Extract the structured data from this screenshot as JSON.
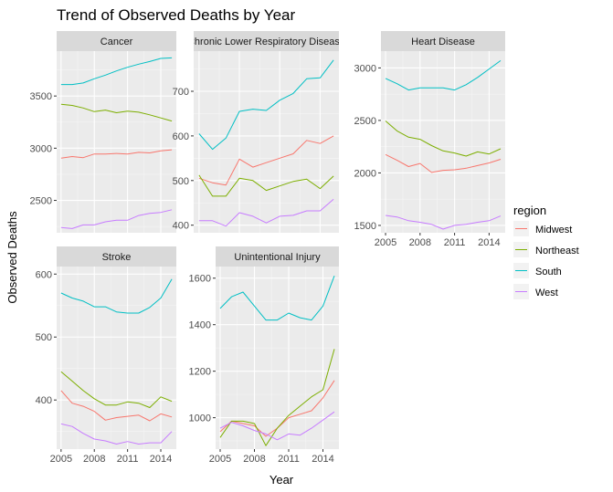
{
  "title": "Trend of Observed Deaths by Year",
  "xlabel": "Year",
  "ylabel": "Observed Deaths",
  "legend": {
    "title": "region",
    "placement": "right",
    "entries": [
      {
        "name": "Midwest",
        "color": "#F8766D"
      },
      {
        "name": "Northeast",
        "color": "#7CAE00"
      },
      {
        "name": "South",
        "color": "#00BFC4"
      },
      {
        "name": "West",
        "color": "#C77CFF"
      }
    ]
  },
  "chart_data": {
    "type": "line",
    "facet_layout": "3 columns, free y scales",
    "grid": true,
    "x": [
      2005,
      2006,
      2007,
      2008,
      2009,
      2010,
      2011,
      2012,
      2013,
      2014,
      2015
    ],
    "xlim": [
      2004.6,
      2015.4
    ],
    "x_ticks": [
      2005,
      2008,
      2011,
      2014
    ],
    "panels": [
      {
        "title": "Cancer",
        "ylim": [
          2190,
          3930
        ],
        "y_ticks": [
          2500,
          3000,
          3500
        ],
        "show_x_ticks": false,
        "series": [
          {
            "name": "Midwest",
            "values": [
              2905,
              2920,
              2910,
              2945,
              2945,
              2950,
              2945,
              2960,
              2955,
              2975,
              2985
            ]
          },
          {
            "name": "Northeast",
            "values": [
              3420,
              3410,
              3385,
              3350,
              3365,
              3340,
              3355,
              3345,
              3320,
              3290,
              3260
            ]
          },
          {
            "name": "South",
            "values": [
              3610,
              3610,
              3625,
              3665,
              3700,
              3740,
              3775,
              3805,
              3830,
              3860,
              3865
            ]
          },
          {
            "name": "West",
            "values": [
              2240,
              2230,
              2265,
              2265,
              2295,
              2310,
              2310,
              2355,
              2375,
              2385,
              2410
            ]
          }
        ]
      },
      {
        "title": "Chronic Lower Respiratory Disease",
        "ylim": [
          383,
          790
        ],
        "y_ticks": [
          400,
          500,
          600,
          700
        ],
        "show_x_ticks": false,
        "series": [
          {
            "name": "Midwest",
            "values": [
              505,
              495,
              490,
              548,
              530,
              540,
              550,
              560,
              590,
              583,
              600
            ]
          },
          {
            "name": "Northeast",
            "values": [
              512,
              465,
              465,
              505,
              500,
              478,
              488,
              498,
              503,
              482,
              510
            ]
          },
          {
            "name": "South",
            "values": [
              605,
              570,
              595,
              655,
              660,
              657,
              680,
              695,
              728,
              730,
              770
            ]
          },
          {
            "name": "West",
            "values": [
              410,
              410,
              398,
              428,
              420,
              405,
              420,
              422,
              432,
              432,
              458
            ]
          }
        ]
      },
      {
        "title": "Heart Disease",
        "ylim": [
          1430,
          3160
        ],
        "y_ticks": [
          1500,
          2000,
          2500,
          3000
        ],
        "show_x_ticks": true,
        "series": [
          {
            "name": "Midwest",
            "values": [
              2175,
              2120,
              2060,
              2090,
              2005,
              2025,
              2030,
              2045,
              2070,
              2095,
              2130
            ]
          },
          {
            "name": "Northeast",
            "values": [
              2495,
              2400,
              2340,
              2320,
              2260,
              2210,
              2190,
              2160,
              2200,
              2180,
              2230
            ]
          },
          {
            "name": "South",
            "values": [
              2900,
              2850,
              2790,
              2810,
              2810,
              2810,
              2790,
              2840,
              2910,
              2990,
              3070
            ]
          },
          {
            "name": "West",
            "values": [
              1595,
              1580,
              1545,
              1530,
              1510,
              1465,
              1500,
              1510,
              1530,
              1545,
              1590
            ]
          }
        ]
      },
      {
        "title": "Stroke",
        "ylim": [
          322,
          612
        ],
        "y_ticks": [
          400,
          500,
          600
        ],
        "show_x_ticks": true,
        "series": [
          {
            "name": "Midwest",
            "values": [
              415,
              395,
              390,
              382,
              368,
              372,
              374,
              376,
              367,
              378,
              373
            ]
          },
          {
            "name": "Northeast",
            "values": [
              445,
              430,
              415,
              402,
              392,
              392,
              397,
              395,
              388,
              405,
              398
            ]
          },
          {
            "name": "South",
            "values": [
              570,
              562,
              557,
              548,
              548,
              540,
              538,
              538,
              547,
              562,
              592
            ]
          },
          {
            "name": "West",
            "values": [
              362,
              358,
              347,
              338,
              335,
              330,
              334,
              330,
              332,
              332,
              350
            ]
          }
        ]
      },
      {
        "title": "Unintentional Injury",
        "ylim": [
          865,
          1650
        ],
        "y_ticks": [
          1000,
          1200,
          1400,
          1600
        ],
        "show_x_ticks": true,
        "series": [
          {
            "name": "Midwest",
            "values": [
              940,
              985,
              975,
              965,
              920,
              955,
              1000,
              1015,
              1030,
              1085,
              1160
            ]
          },
          {
            "name": "Northeast",
            "values": [
              915,
              985,
              985,
              975,
              880,
              955,
              1010,
              1050,
              1090,
              1120,
              1295
            ]
          },
          {
            "name": "South",
            "values": [
              1470,
              1520,
              1540,
              1480,
              1420,
              1420,
              1450,
              1430,
              1420,
              1480,
              1610
            ]
          },
          {
            "name": "West",
            "values": [
              955,
              980,
              965,
              945,
              930,
              905,
              930,
              925,
              955,
              990,
              1025
            ]
          }
        ]
      }
    ]
  }
}
